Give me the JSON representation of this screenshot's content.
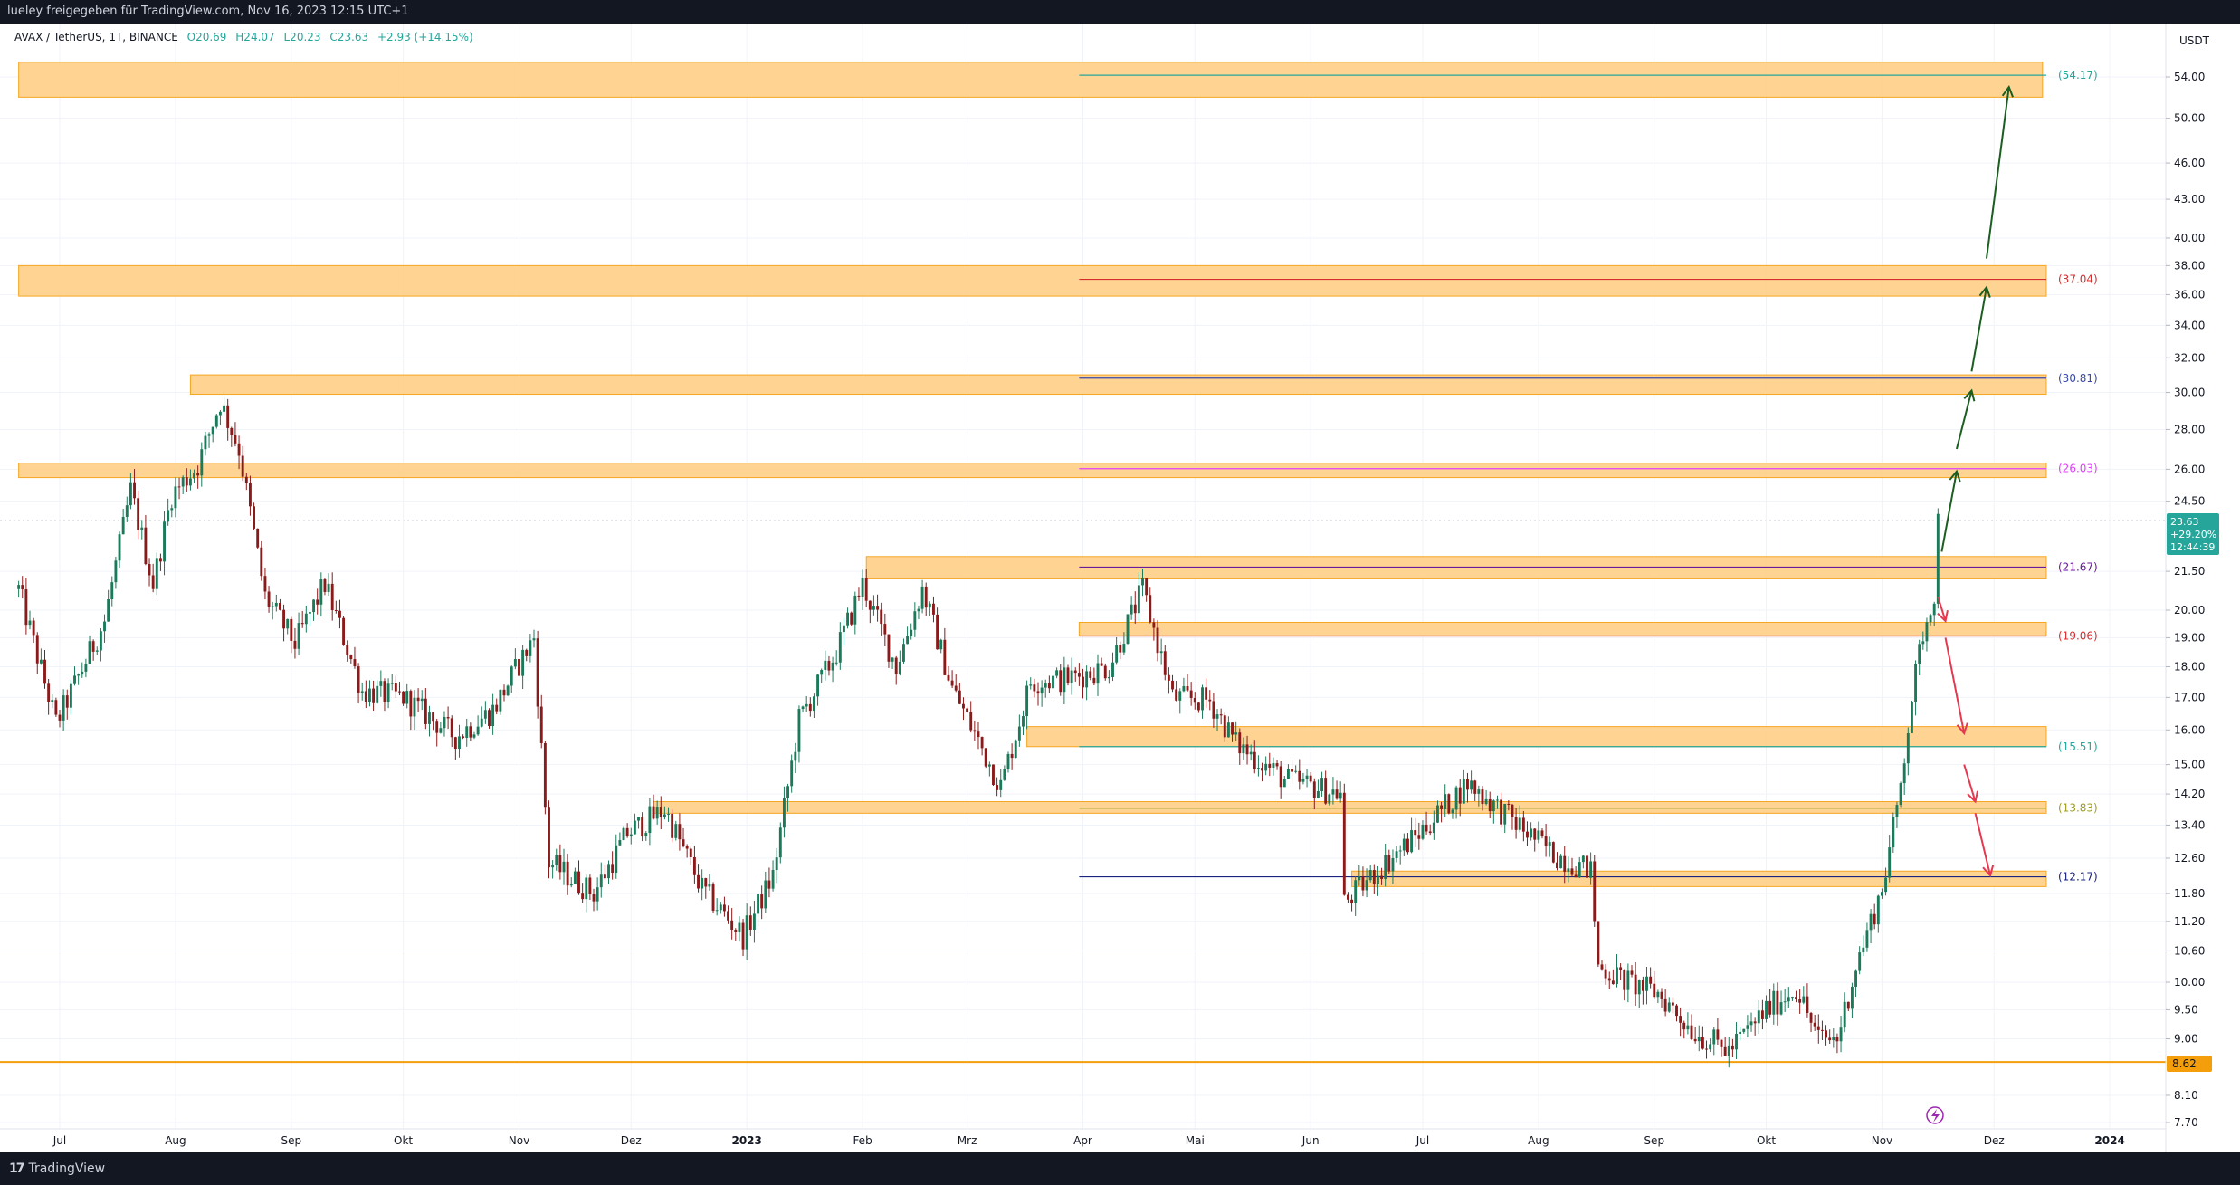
{
  "header": {
    "published_by": "lueley freigegeben für TradingView.com, Nov 16, 2023 12:15 UTC+1"
  },
  "footer": {
    "brand": "TradingView"
  },
  "legend": {
    "symbol": "AVAX / TetherUS, 1T, BINANCE",
    "open": "O20.69",
    "high": "H24.07",
    "low": "L20.23",
    "close": "C23.63",
    "change": "+2.93 (+14.15%)"
  },
  "axis": {
    "currency": "USDT",
    "price_badge": [
      "23.63",
      "+29.20%",
      "12:44:39"
    ],
    "support_badge": "8.62"
  },
  "colors": {
    "up": "#26a69a",
    "down": "#ef5350",
    "zone_fill": "#ffcc80",
    "zone_stroke": "#f5a623",
    "up_arrow": "#1b5e20",
    "down_arrow": "#e53950",
    "support_line": "#f59e0b",
    "price_badge": "#26a69a"
  },
  "chart_data": {
    "type": "candlestick",
    "scale": "log",
    "ylim": [
      7.7,
      60
    ],
    "y_ticks": [
      54.0,
      50.0,
      46.0,
      43.0,
      40.0,
      38.0,
      36.0,
      34.0,
      32.0,
      30.0,
      28.0,
      26.0,
      24.5,
      23.63,
      21.5,
      20.0,
      19.0,
      18.0,
      17.0,
      16.0,
      15.0,
      14.2,
      13.4,
      12.6,
      11.8,
      11.2,
      10.6,
      10.0,
      9.5,
      9.0,
      8.62,
      8.1,
      7.7
    ],
    "y_tick_labels": [
      "54.00",
      "50.00",
      "46.00",
      "43.00",
      "40.00",
      "38.00",
      "36.00",
      "34.00",
      "32.00",
      "30.00",
      "28.00",
      "26.00",
      "24.50",
      "",
      "21.50",
      "20.00",
      "19.00",
      "18.00",
      "17.00",
      "16.00",
      "15.00",
      "14.20",
      "13.40",
      "12.60",
      "11.80",
      "11.20",
      "10.60",
      "10.00",
      "9.50",
      "9.00",
      "",
      "8.10",
      "7.70"
    ],
    "x_ticks": [
      "Jul",
      "Aug",
      "Sep",
      "Okt",
      "Nov",
      "Dez",
      "2023",
      "Feb",
      "Mrz",
      "Apr",
      "Mai",
      "Jun",
      "Jul",
      "Aug",
      "Sep",
      "Okt",
      "Nov",
      "Dez",
      "2024"
    ],
    "x_tick_dates": [
      "2022-07-01",
      "2022-08-01",
      "2022-09-01",
      "2022-10-01",
      "2022-11-01",
      "2022-12-01",
      "2023-01-01",
      "2023-02-01",
      "2023-03-01",
      "2023-04-01",
      "2023-05-01",
      "2023-06-01",
      "2023-07-01",
      "2023-08-01",
      "2023-09-01",
      "2023-10-01",
      "2023-11-01",
      "2023-12-01",
      "2024-01-01"
    ],
    "path": [
      [
        "2022-06-20",
        20.8
      ],
      [
        "2022-06-30",
        16.2
      ],
      [
        "2022-07-05",
        17.4
      ],
      [
        "2022-07-13",
        19.6
      ],
      [
        "2022-07-20",
        25.0
      ],
      [
        "2022-07-26",
        21.0
      ],
      [
        "2022-07-31",
        24.8
      ],
      [
        "2022-08-07",
        26.2
      ],
      [
        "2022-08-13",
        29.5
      ],
      [
        "2022-08-18",
        27.0
      ],
      [
        "2022-08-25",
        20.5
      ],
      [
        "2022-09-02",
        18.8
      ],
      [
        "2022-09-10",
        21.0
      ],
      [
        "2022-09-20",
        17.2
      ],
      [
        "2022-10-01",
        17.0
      ],
      [
        "2022-10-15",
        15.8
      ],
      [
        "2022-10-25",
        16.6
      ],
      [
        "2022-11-05",
        19.0
      ],
      [
        "2022-11-09",
        12.5
      ],
      [
        "2022-11-21",
        11.8
      ],
      [
        "2022-11-30",
        13.2
      ],
      [
        "2022-12-10",
        13.8
      ],
      [
        "2022-12-20",
        11.9
      ],
      [
        "2022-12-31",
        10.9
      ],
      [
        "2023-01-08",
        12.2
      ],
      [
        "2023-01-15",
        16.3
      ],
      [
        "2023-01-25",
        18.5
      ],
      [
        "2023-02-01",
        21.0
      ],
      [
        "2023-02-10",
        18.0
      ],
      [
        "2023-02-17",
        20.8
      ],
      [
        "2023-02-25",
        17.3
      ],
      [
        "2023-03-10",
        14.4
      ],
      [
        "2023-03-18",
        17.5
      ],
      [
        "2023-03-28",
        17.6
      ],
      [
        "2023-04-08",
        18.0
      ],
      [
        "2023-04-17",
        20.8
      ],
      [
        "2023-04-25",
        17.0
      ],
      [
        "2023-05-05",
        16.9
      ],
      [
        "2023-05-12",
        15.6
      ],
      [
        "2023-05-25",
        14.6
      ],
      [
        "2023-06-09",
        14.2
      ],
      [
        "2023-06-10",
        11.6
      ],
      [
        "2023-06-20",
        12.4
      ],
      [
        "2023-06-30",
        13.2
      ],
      [
        "2023-07-13",
        14.5
      ],
      [
        "2023-07-24",
        13.6
      ],
      [
        "2023-08-05",
        12.7
      ],
      [
        "2023-08-15",
        12.3
      ],
      [
        "2023-08-17",
        10.3
      ],
      [
        "2023-08-25",
        10.0
      ],
      [
        "2023-09-02",
        9.8
      ],
      [
        "2023-09-12",
        9.1
      ],
      [
        "2023-09-21",
        8.8
      ],
      [
        "2023-10-01",
        9.5
      ],
      [
        "2023-10-09",
        9.9
      ],
      [
        "2023-10-15",
        9.0
      ],
      [
        "2023-10-20",
        9.0
      ],
      [
        "2023-10-25",
        10.3
      ],
      [
        "2023-11-01",
        11.9
      ],
      [
        "2023-11-05",
        13.8
      ],
      [
        "2023-11-09",
        17.0
      ],
      [
        "2023-11-12",
        19.2
      ],
      [
        "2023-11-15",
        20.7
      ],
      [
        "2023-11-16",
        23.63
      ]
    ],
    "zones": [
      {
        "from": "2022-06-20",
        "to": "2023-12-14",
        "low": 52.0,
        "high": 55.5
      },
      {
        "from": "2022-06-20",
        "to": "2023-12-15",
        "low": 35.9,
        "high": 38.0
      },
      {
        "from": "2022-08-05",
        "to": "2023-12-15",
        "low": 29.9,
        "high": 31.0
      },
      {
        "from": "2022-06-20",
        "to": "2023-12-15",
        "low": 25.6,
        "high": 26.3
      },
      {
        "from": "2023-02-02",
        "to": "2023-12-15",
        "low": 21.2,
        "high": 22.1
      },
      {
        "from": "2023-03-31",
        "to": "2023-12-15",
        "low": 19.06,
        "high": 19.55
      },
      {
        "from": "2023-03-17",
        "to": "2023-12-15",
        "low": 15.51,
        "high": 16.1
      },
      {
        "from": "2022-12-07",
        "to": "2023-12-15",
        "low": 13.7,
        "high": 14.0
      },
      {
        "from": "2023-06-12",
        "to": "2023-12-15",
        "low": 11.95,
        "high": 12.3
      }
    ],
    "levels": [
      {
        "value": 54.17,
        "label": "(54.17)",
        "color": "#26a69a"
      },
      {
        "value": 37.04,
        "label": "(37.04)",
        "color": "#d32f2f"
      },
      {
        "value": 30.81,
        "label": "(30.81)",
        "color": "#3949ab"
      },
      {
        "value": 26.03,
        "label": "(26.03)",
        "color": "#e040fb"
      },
      {
        "value": 21.67,
        "label": "(21.67)",
        "color": "#6a1b9a"
      },
      {
        "value": 19.06,
        "label": "(19.06)",
        "color": "#d32f2f"
      },
      {
        "value": 15.51,
        "label": "(15.51)",
        "color": "#26a69a"
      },
      {
        "value": 13.83,
        "label": "(13.83)",
        "color": "#9e9d24"
      },
      {
        "value": 12.17,
        "label": "(12.17)",
        "color": "#1a237e"
      }
    ],
    "support_line": 8.62,
    "up_arrows": [
      [
        [
          "2023-11-17",
          22.3
        ],
        [
          "2023-11-21",
          25.9
        ]
      ],
      [
        [
          "2023-11-21",
          27.0
        ],
        [
          "2023-11-25",
          30.1
        ]
      ],
      [
        [
          "2023-11-25",
          31.2
        ],
        [
          "2023-11-29",
          36.5
        ]
      ],
      [
        [
          "2023-11-29",
          38.5
        ],
        [
          "2023-12-05",
          53.0
        ]
      ]
    ],
    "down_arrows": [
      [
        [
          "2023-11-16",
          20.5
        ],
        [
          "2023-11-18",
          19.6
        ]
      ],
      [
        [
          "2023-11-18",
          19.0
        ],
        [
          "2023-11-23",
          15.9
        ]
      ],
      [
        [
          "2023-11-23",
          15.0
        ],
        [
          "2023-11-26",
          14.0
        ]
      ],
      [
        [
          "2023-11-26",
          13.7
        ],
        [
          "2023-11-30",
          12.2
        ]
      ]
    ]
  }
}
